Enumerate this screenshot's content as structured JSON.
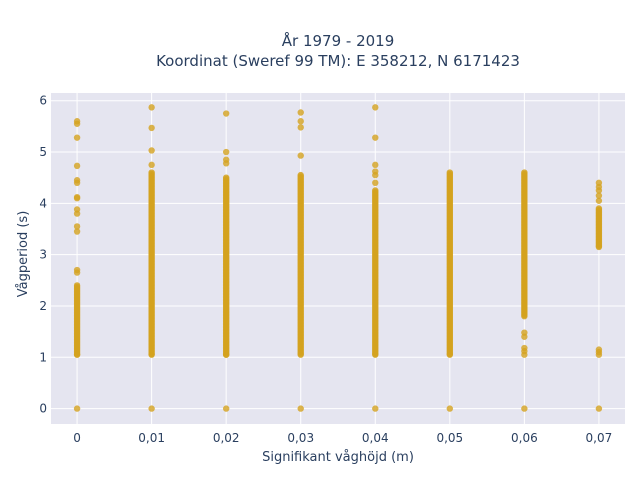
{
  "chart_data": {
    "type": "scatter",
    "title_line1": "År 1979 - 2019",
    "title_line2": "Koordinat (Sweref 99 TM): E 358212, N 6171423",
    "xlabel": "Signifikant våghöjd (m)",
    "ylabel": "Vågperiod (s)",
    "xlim": [
      -0.0035,
      0.0735
    ],
    "ylim": [
      -0.3,
      6.15
    ],
    "x_ticks": [
      {
        "value": 0,
        "label": "0"
      },
      {
        "value": 0.01,
        "label": "0,01"
      },
      {
        "value": 0.02,
        "label": "0,02"
      },
      {
        "value": 0.03,
        "label": "0,03"
      },
      {
        "value": 0.04,
        "label": "0,04"
      },
      {
        "value": 0.05,
        "label": "0,05"
      },
      {
        "value": 0.06,
        "label": "0,06"
      },
      {
        "value": 0.07,
        "label": "0,07"
      }
    ],
    "y_ticks": [
      {
        "value": 0,
        "label": "0"
      },
      {
        "value": 1,
        "label": "1"
      },
      {
        "value": 2,
        "label": "2"
      },
      {
        "value": 3,
        "label": "3"
      },
      {
        "value": 4,
        "label": "4"
      },
      {
        "value": 5,
        "label": "5"
      },
      {
        "value": 6,
        "label": "6"
      }
    ],
    "grid": true,
    "colors": {
      "marker": "#d4a21f",
      "plot_bg": "#e5e5f0",
      "grid": "#ffffff"
    },
    "series": [
      {
        "ranges": [
          {
            "x": 0,
            "y_from": 1.05,
            "y_to": 2.4
          },
          {
            "x": 0.01,
            "y_from": 1.05,
            "y_to": 4.6
          },
          {
            "x": 0.02,
            "y_from": 1.05,
            "y_to": 4.5
          },
          {
            "x": 0.03,
            "y_from": 1.05,
            "y_to": 4.55
          },
          {
            "x": 0.04,
            "y_from": 1.05,
            "y_to": 4.25
          },
          {
            "x": 0.05,
            "y_from": 1.05,
            "y_to": 4.6
          },
          {
            "x": 0.06,
            "y_from": 1.8,
            "y_to": 4.6
          },
          {
            "x": 0.07,
            "y_from": 3.15,
            "y_to": 3.9
          }
        ],
        "points": [
          {
            "x": 0,
            "y": 0
          },
          {
            "x": 0,
            "y": 2.65
          },
          {
            "x": 0,
            "y": 2.7
          },
          {
            "x": 0,
            "y": 3.45
          },
          {
            "x": 0,
            "y": 3.55
          },
          {
            "x": 0,
            "y": 3.8
          },
          {
            "x": 0,
            "y": 3.88
          },
          {
            "x": 0,
            "y": 4.1
          },
          {
            "x": 0,
            "y": 4.12
          },
          {
            "x": 0,
            "y": 4.4
          },
          {
            "x": 0,
            "y": 4.45
          },
          {
            "x": 0,
            "y": 4.73
          },
          {
            "x": 0,
            "y": 5.28
          },
          {
            "x": 0,
            "y": 5.55
          },
          {
            "x": 0,
            "y": 5.6
          },
          {
            "x": 0.01,
            "y": 0
          },
          {
            "x": 0.01,
            "y": 4.75
          },
          {
            "x": 0.01,
            "y": 5.03
          },
          {
            "x": 0.01,
            "y": 5.47
          },
          {
            "x": 0.01,
            "y": 5.87
          },
          {
            "x": 0.02,
            "y": 0
          },
          {
            "x": 0.02,
            "y": 4.78
          },
          {
            "x": 0.02,
            "y": 4.85
          },
          {
            "x": 0.02,
            "y": 5.0
          },
          {
            "x": 0.02,
            "y": 5.75
          },
          {
            "x": 0.03,
            "y": 0
          },
          {
            "x": 0.03,
            "y": 4.93
          },
          {
            "x": 0.03,
            "y": 5.48
          },
          {
            "x": 0.03,
            "y": 5.6
          },
          {
            "x": 0.03,
            "y": 5.77
          },
          {
            "x": 0.04,
            "y": 0
          },
          {
            "x": 0.04,
            "y": 4.4
          },
          {
            "x": 0.04,
            "y": 4.55
          },
          {
            "x": 0.04,
            "y": 4.62
          },
          {
            "x": 0.04,
            "y": 4.75
          },
          {
            "x": 0.04,
            "y": 5.28
          },
          {
            "x": 0.04,
            "y": 5.87
          },
          {
            "x": 0.05,
            "y": 0
          },
          {
            "x": 0.06,
            "y": 0
          },
          {
            "x": 0.06,
            "y": 1.05
          },
          {
            "x": 0.06,
            "y": 1.12
          },
          {
            "x": 0.06,
            "y": 1.18
          },
          {
            "x": 0.06,
            "y": 1.4
          },
          {
            "x": 0.06,
            "y": 1.48
          },
          {
            "x": 0.07,
            "y": 0
          },
          {
            "x": 0.07,
            "y": 1.05
          },
          {
            "x": 0.07,
            "y": 1.1
          },
          {
            "x": 0.07,
            "y": 1.15
          },
          {
            "x": 0.07,
            "y": 4.05
          },
          {
            "x": 0.07,
            "y": 4.15
          },
          {
            "x": 0.07,
            "y": 4.25
          },
          {
            "x": 0.07,
            "y": 4.32
          },
          {
            "x": 0.07,
            "y": 4.4
          }
        ]
      }
    ]
  }
}
